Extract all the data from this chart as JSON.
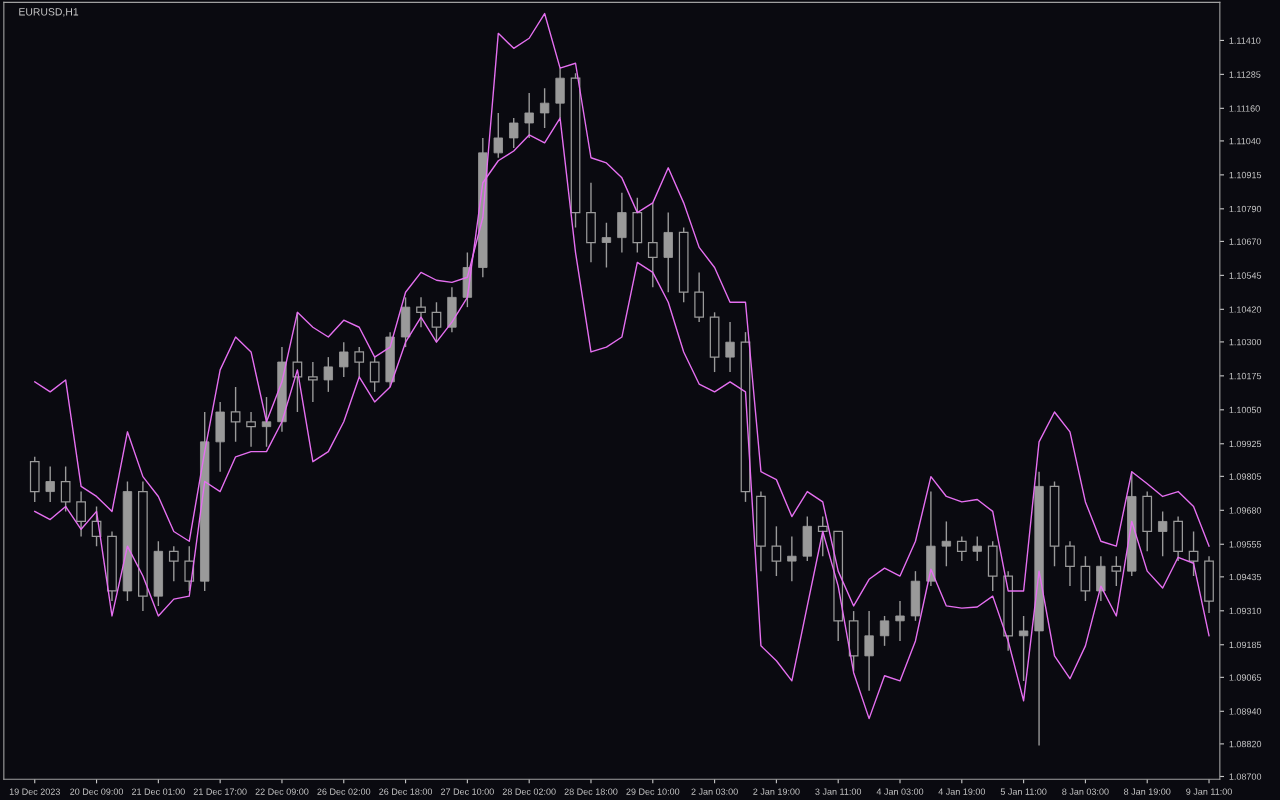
{
  "chart_data": {
    "type": "candlestick",
    "title": "EURUSD,H1",
    "color": "#9a9a9a",
    "categories": [
      "19 Dec 2023",
      null,
      null,
      null,
      "20 Dec 09:00",
      null,
      null,
      null,
      "21 Dec 01:00",
      null,
      null,
      null,
      "21 Dec 17:00",
      null,
      null,
      null,
      "22 Dec 09:00",
      null,
      null,
      null,
      "26 Dec 02:00",
      null,
      null,
      null,
      "26 Dec 18:00",
      null,
      null,
      null,
      "27 Dec 10:00",
      null,
      null,
      null,
      "28 Dec 02:00",
      null,
      null,
      null,
      "28 Dec 18:00",
      null,
      null,
      null,
      "29 Dec 10:00",
      null,
      null,
      null,
      "2 Jan 03:00",
      null,
      null,
      null,
      "2 Jan 19:00",
      null,
      null,
      null,
      "3 Jan 11:00",
      null,
      null,
      null,
      "4 Jan 03:00",
      null,
      null,
      null,
      "4 Jan 19:00",
      null,
      null,
      null,
      "5 Jan 11:00",
      null,
      null,
      null,
      "8 Jan 03:00",
      null,
      null,
      null,
      "8 Jan 19:00",
      null,
      null,
      null,
      "9 Jan 11:00"
    ],
    "ohlc": [
      [
        1.09859,
        1.09877,
        1.09711,
        1.09749
      ],
      [
        1.09749,
        1.09841,
        1.09711,
        1.09786
      ],
      [
        1.09786,
        1.09841,
        1.09676,
        1.09711
      ],
      [
        1.09711,
        1.09749,
        1.09584,
        1.09639
      ],
      [
        1.09639,
        1.09694,
        1.09548,
        1.09584
      ],
      [
        1.09584,
        1.09602,
        1.09346,
        1.09383
      ],
      [
        1.09383,
        1.09786,
        1.09346,
        1.09749
      ],
      [
        1.09749,
        1.09786,
        1.09309,
        1.09364
      ],
      [
        1.09364,
        1.09566,
        1.09328,
        1.09529
      ],
      [
        1.09529,
        1.09548,
        1.09419,
        1.09493
      ],
      [
        1.09493,
        1.09548,
        1.09383,
        1.09419
      ],
      [
        1.09419,
        1.10042,
        1.09383,
        1.09932
      ],
      [
        1.09932,
        1.10079,
        1.09822,
        1.10042
      ],
      [
        1.10042,
        1.10134,
        1.09932,
        1.10006
      ],
      [
        1.10006,
        1.10042,
        1.09914,
        1.09988
      ],
      [
        1.09988,
        1.10097,
        1.09914,
        1.10006
      ],
      [
        1.10006,
        1.10281,
        1.09969,
        1.10226
      ],
      [
        1.10226,
        1.10409,
        1.10042,
        1.10171
      ],
      [
        1.10171,
        1.10226,
        1.10079,
        1.1016
      ],
      [
        1.1016,
        1.10244,
        1.10116,
        1.10208
      ],
      [
        1.10208,
        1.10299,
        1.10171,
        1.10263
      ],
      [
        1.10263,
        1.10281,
        1.10171,
        1.10226
      ],
      [
        1.10226,
        1.10244,
        1.10116,
        1.10153
      ],
      [
        1.10153,
        1.10336,
        1.10134,
        1.10318
      ],
      [
        1.10318,
        1.10464,
        1.10281,
        1.10428
      ],
      [
        1.10428,
        1.10464,
        1.10354,
        1.10409
      ],
      [
        1.10409,
        1.10446,
        1.10299,
        1.10354
      ],
      [
        1.10354,
        1.10501,
        1.10336,
        1.10464
      ],
      [
        1.10464,
        1.10629,
        1.10428,
        1.10574
      ],
      [
        1.10574,
        1.11051,
        1.10538,
        1.10996
      ],
      [
        1.10996,
        1.11143,
        1.10978,
        1.11051
      ],
      [
        1.11051,
        1.11124,
        1.11014,
        1.11106
      ],
      [
        1.11106,
        1.11216,
        1.11051,
        1.11143
      ],
      [
        1.11143,
        1.11234,
        1.11088,
        1.11179
      ],
      [
        1.11179,
        1.11308,
        1.11124,
        1.11271
      ],
      [
        1.11271,
        1.11289,
        1.10721,
        1.10776
      ],
      [
        1.10776,
        1.10886,
        1.10593,
        1.10666
      ],
      [
        1.10666,
        1.10739,
        1.10574,
        1.10684
      ],
      [
        1.10684,
        1.10849,
        1.10629,
        1.10776
      ],
      [
        1.10776,
        1.10831,
        1.10629,
        1.10666
      ],
      [
        1.10666,
        1.10812,
        1.10501,
        1.10611
      ],
      [
        1.10611,
        1.10776,
        1.10483,
        1.10703
      ],
      [
        1.10703,
        1.10721,
        1.10446,
        1.10483
      ],
      [
        1.10483,
        1.10556,
        1.10373,
        1.10391
      ],
      [
        1.10391,
        1.10409,
        1.10189,
        1.10244
      ],
      [
        1.10244,
        1.10373,
        1.10189,
        1.10299
      ],
      [
        1.10299,
        1.10336,
        1.09711,
        1.09749
      ],
      [
        1.09731,
        1.09749,
        1.09456,
        1.09548
      ],
      [
        1.09548,
        1.09621,
        1.09438,
        1.09493
      ],
      [
        1.09493,
        1.09584,
        1.09419,
        1.09511
      ],
      [
        1.09511,
        1.09657,
        1.09493,
        1.09621
      ],
      [
        1.09621,
        1.09657,
        1.09511,
        1.09602
      ],
      [
        1.09602,
        1.09602,
        1.09199,
        1.09273
      ],
      [
        1.09273,
        1.09309,
        1.09089,
        1.09144
      ],
      [
        1.09144,
        1.09309,
        1.09016,
        1.09218
      ],
      [
        1.09218,
        1.09291,
        1.09181,
        1.09273
      ],
      [
        1.09273,
        1.09346,
        1.09199,
        1.09291
      ],
      [
        1.09291,
        1.09456,
        1.09273,
        1.09419
      ],
      [
        1.09419,
        1.09749,
        1.09401,
        1.09548
      ],
      [
        1.09548,
        1.09639,
        1.09474,
        1.09566
      ],
      [
        1.09566,
        1.09584,
        1.09493,
        1.09529
      ],
      [
        1.09529,
        1.09584,
        1.09493,
        1.09548
      ],
      [
        1.09548,
        1.09566,
        1.09383,
        1.09438
      ],
      [
        1.09438,
        1.09456,
        1.09163,
        1.09218
      ],
      [
        1.09218,
        1.09291,
        1.09052,
        1.09236
      ],
      [
        1.09236,
        1.09822,
        1.08814,
        1.09768
      ],
      [
        1.09768,
        1.09786,
        1.09474,
        1.09548
      ],
      [
        1.09548,
        1.09566,
        1.09401,
        1.09474
      ],
      [
        1.09474,
        1.09511,
        1.09346,
        1.09383
      ],
      [
        1.09383,
        1.09511,
        1.09346,
        1.09474
      ],
      [
        1.09474,
        1.09511,
        1.09401,
        1.09456
      ],
      [
        1.09456,
        1.09822,
        1.09438,
        1.09731
      ],
      [
        1.09731,
        1.09749,
        1.09529,
        1.09602
      ],
      [
        1.09602,
        1.09676,
        1.09511,
        1.09639
      ],
      [
        1.09639,
        1.09657,
        1.09493,
        1.09529
      ],
      [
        1.09529,
        1.09602,
        1.09438,
        1.09493
      ],
      [
        1.09493,
        1.09511,
        1.09302,
        1.09346
      ]
    ],
    "series": [
      {
        "type": "line",
        "color": "#e56ff0",
        "values": [
          1.10153,
          1.10116,
          1.1016,
          1.09768,
          1.09731,
          1.09676,
          1.09969,
          1.09804,
          1.09731,
          1.09602,
          1.09566,
          1.09896,
          1.10197,
          1.10318,
          1.10263,
          1.10006,
          1.10153,
          1.10409,
          1.10354,
          1.10318,
          1.1038,
          1.10354,
          1.10244,
          1.10281,
          1.10483,
          1.10556,
          1.10527,
          1.10519,
          1.10538,
          1.10758,
          1.11436,
          1.11381,
          1.11418,
          1.11509,
          1.11308,
          1.11326,
          1.10978,
          1.10959,
          1.10904,
          1.10776,
          1.10812,
          1.10941,
          1.10812,
          1.10648,
          1.10574,
          1.10446,
          1.10446,
          1.09822,
          1.09793,
          1.09657,
          1.09749,
          1.09711,
          1.09456,
          1.09328,
          1.09426,
          1.09467,
          1.09438,
          1.09566,
          1.09804,
          1.09731,
          1.09711,
          1.0972,
          1.09676,
          1.09383,
          1.09383,
          1.09932,
          1.10042,
          1.09969,
          1.09711,
          1.09566,
          1.09548,
          1.09822,
          1.09778,
          1.09731,
          1.09749,
          1.09694,
          1.09548
        ]
      },
      {
        "type": "line",
        "color": "#e56ff0",
        "values": [
          1.09676,
          1.09646,
          1.09694,
          1.0961,
          1.09676,
          1.09291,
          1.09548,
          1.09438,
          1.09291,
          1.09353,
          1.09364,
          1.09786,
          1.09749,
          1.09877,
          1.09896,
          1.09896,
          1.10006,
          1.10197,
          1.09859,
          1.09896,
          1.10006,
          1.10171,
          1.10079,
          1.10134,
          1.10299,
          1.10391,
          1.10299,
          1.10373,
          1.10464,
          1.10886,
          1.10967,
          1.11003,
          1.11062,
          1.11033,
          1.11124,
          1.10629,
          1.10263,
          1.10281,
          1.10318,
          1.10593,
          1.10556,
          1.10446,
          1.10263,
          1.10145,
          1.10116,
          1.10153,
          1.10116,
          1.09181,
          1.09126,
          1.09052,
          1.09328,
          1.09602,
          1.09401,
          1.09082,
          1.08913,
          1.09071,
          1.09052,
          1.09199,
          1.09463,
          1.09328,
          1.0932,
          1.09324,
          1.09364,
          1.09199,
          1.08979,
          1.09456,
          1.09144,
          1.0906,
          1.09181,
          1.09401,
          1.09291,
          1.09639,
          1.09456,
          1.09394,
          1.09507,
          1.09485,
          1.09218
        ]
      }
    ],
    "ylim": [
      1.0869,
      1.1155
    ],
    "yticks": [
      {
        "value": 1.1141,
        "label": "1.11410"
      },
      1.11285,
      {
        "value": 1.1116,
        "label": "1.11160"
      },
      {
        "value": 1.1104,
        "label": "1.11040"
      },
      1.10915,
      {
        "value": 1.1079,
        "label": "1.10790"
      },
      {
        "value": 1.1067,
        "label": "1.10670"
      },
      1.10545,
      {
        "value": 1.1042,
        "label": "1.10420"
      },
      {
        "value": 1.103,
        "label": "1.10300"
      },
      1.10175,
      {
        "value": 1.1005,
        "label": "1.10050"
      },
      1.09925,
      1.09805,
      {
        "value": 1.0968,
        "label": "1.09680"
      },
      1.09555,
      1.09435,
      {
        "value": 1.0931,
        "label": "1.09310"
      },
      1.09185,
      1.09065,
      {
        "value": 1.0894,
        "label": "1.08940"
      },
      {
        "value": 1.0882,
        "label": "1.08820"
      },
      {
        "value": 1.087,
        "label": "1.08700"
      }
    ],
    "grid": false,
    "legend": false,
    "line_style": "solid",
    "marker": "none"
  }
}
